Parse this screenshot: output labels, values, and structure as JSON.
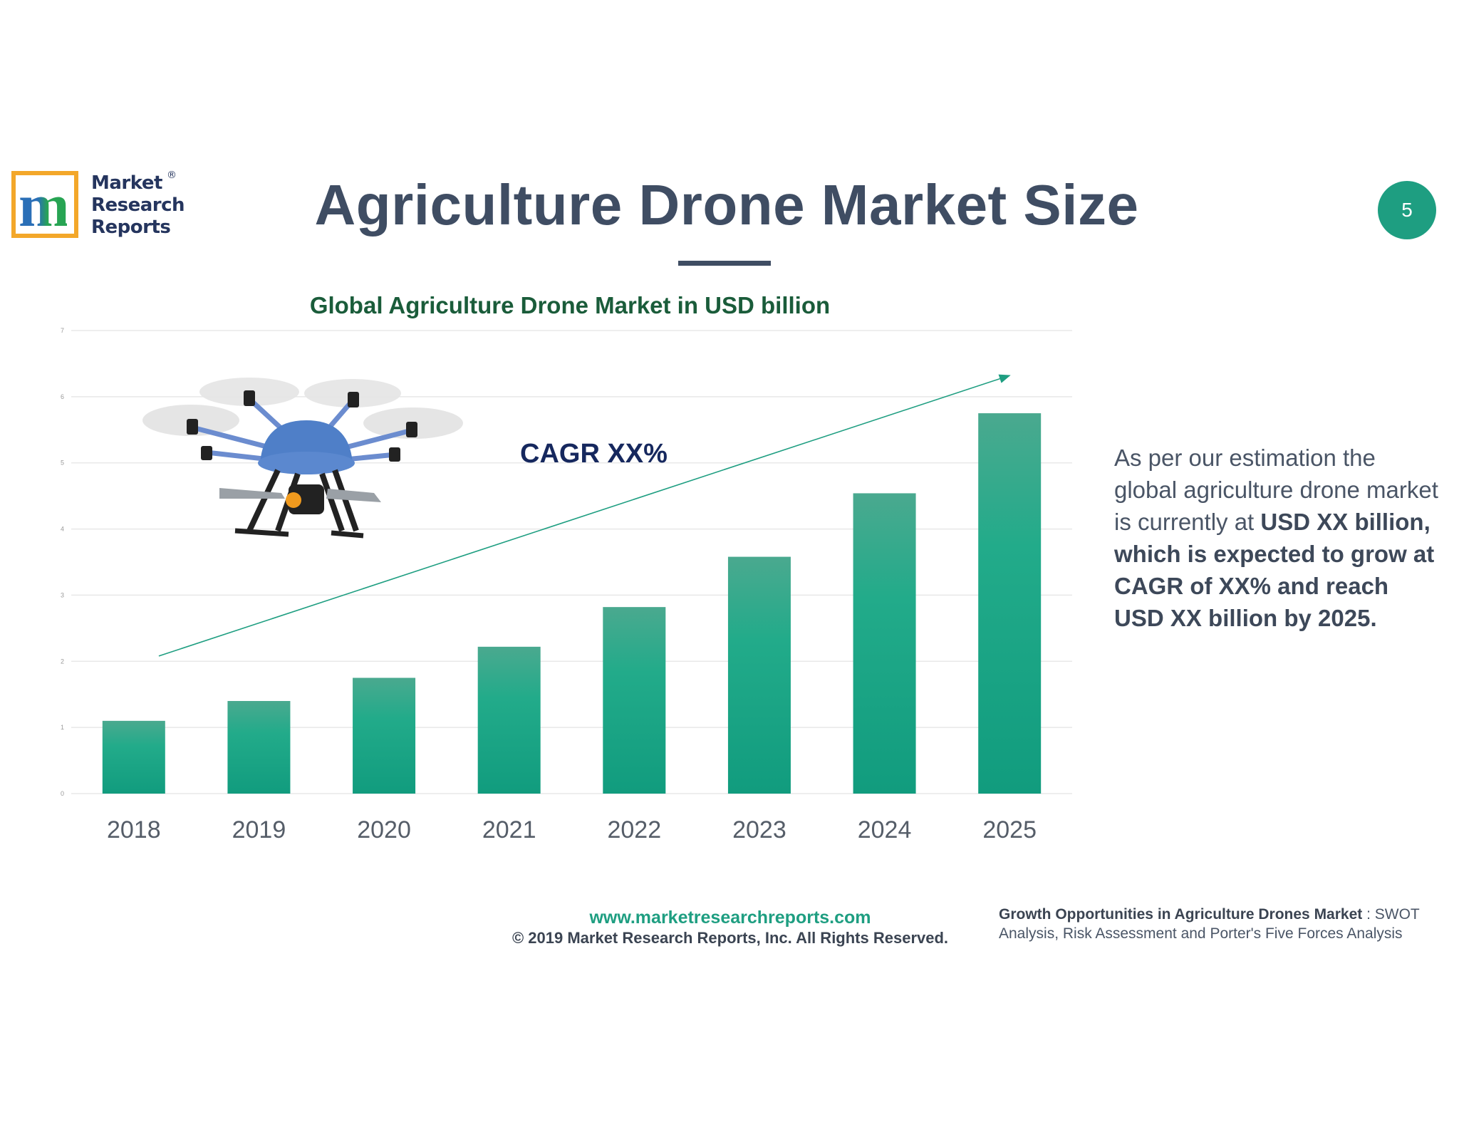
{
  "logo": {
    "mark": "m",
    "line1": "Market",
    "line2": "Research",
    "line3": "Reports",
    "registered": "®"
  },
  "header": {
    "title": "Agriculture Drone Market Size",
    "page_number": "5"
  },
  "cagr_label": "CAGR XX%",
  "drone_image": "agriculture-drone-photo",
  "side_text": {
    "part1": "As per our estimation the global agriculture drone market is currently at ",
    "part2": "USD XX billion, which is expected to grow at CAGR of XX% and reach USD XX billion by 2025."
  },
  "footer": {
    "url": "www.marketresearchreports.com",
    "copyright": "© 2019 Market Research Reports, Inc. All Rights Reserved.",
    "note_bold": "Growth Opportunities in Agriculture Drones Market",
    "note_rest": " : SWOT Analysis, Risk Assessment and Porter's Five Forces Analysis"
  },
  "colors": {
    "accent": "#1e9e81",
    "title": "#3f4d63",
    "chart_title": "#1a5c3a",
    "cagr": "#16285e",
    "logo_border": "#f3a72a"
  },
  "chart_data": {
    "type": "bar",
    "title": "Global Agriculture Drone Market in USD billion",
    "categories": [
      "2018",
      "2019",
      "2020",
      "2021",
      "2022",
      "2023",
      "2024",
      "2025"
    ],
    "values": [
      1.1,
      1.4,
      1.75,
      2.22,
      2.82,
      3.58,
      4.54,
      5.75
    ],
    "ylim": [
      0,
      7
    ],
    "yticks": [
      0,
      1,
      2,
      3,
      4,
      5,
      6,
      7
    ],
    "xlabel": "",
    "ylabel": "",
    "grid": true,
    "trend_arrow": {
      "from": [
        2018.2,
        2.08
      ],
      "to": [
        2025.0,
        6.32
      ]
    }
  }
}
